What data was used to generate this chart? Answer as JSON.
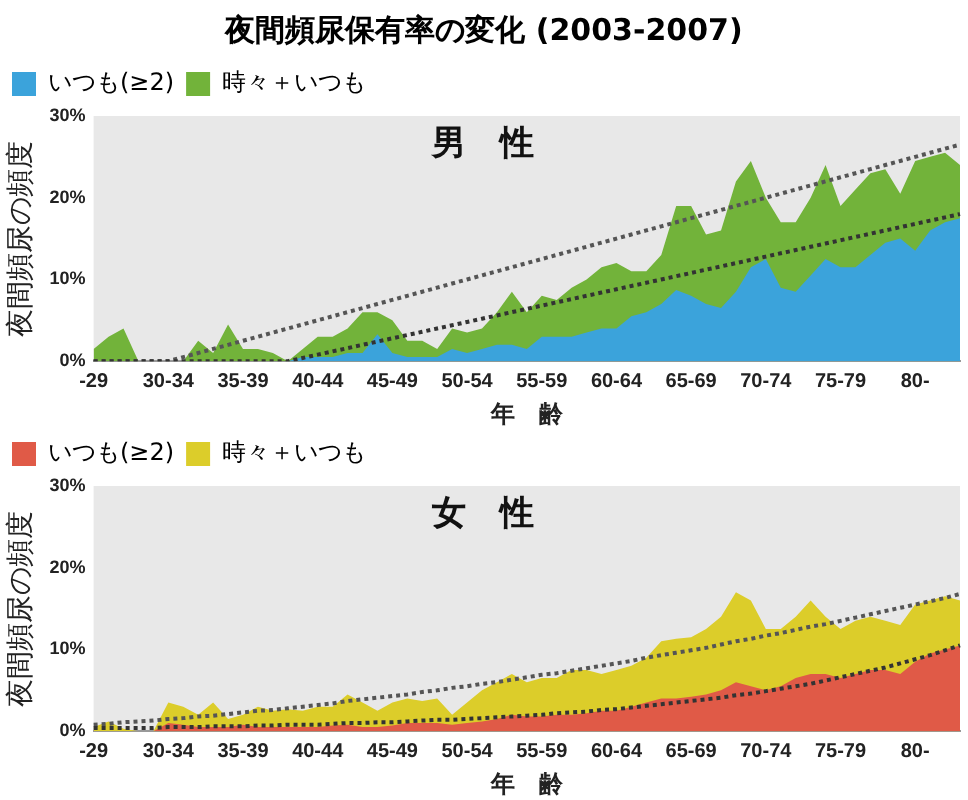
{
  "chart_data": [
    {
      "type": "area",
      "title": "夜間頻尿保有率の変化 (2003-2007)",
      "xlabel": "年　齢",
      "ylabel": "夜間頻尿の頻度",
      "annotations": [
        "男　性"
      ],
      "categories": [
        "-29",
        null,
        null,
        null,
        null,
        "30-34",
        null,
        null,
        null,
        null,
        "35-39",
        null,
        null,
        null,
        null,
        "40-44",
        null,
        null,
        null,
        null,
        "45-49",
        null,
        null,
        null,
        null,
        "50-54",
        null,
        null,
        null,
        null,
        "55-59",
        null,
        null,
        null,
        null,
        "60-64",
        null,
        null,
        null,
        null,
        "65-69",
        null,
        null,
        null,
        null,
        "70-74",
        null,
        null,
        null,
        null,
        "75-79",
        null,
        null,
        null,
        null,
        "80-",
        null,
        null,
        null
      ],
      "ylim": [
        0,
        30
      ],
      "yticks": [
        {
          "value": 0,
          "label": "0%"
        },
        {
          "value": 10,
          "label": "10%"
        },
        {
          "value": 20,
          "label": "20%"
        },
        {
          "value": 30,
          "label": "30%"
        }
      ],
      "grid": false,
      "legend": "top left",
      "marker": "none",
      "series": [
        {
          "type": "line",
          "color": "#333333",
          "line_style": "dotted",
          "values": [
            0,
            0,
            0,
            0,
            0,
            0,
            0,
            0,
            0,
            0,
            0,
            0,
            0,
            0,
            0.4,
            0.8,
            1.2,
            1.6,
            2,
            2.4,
            2.8,
            3.2,
            3.6,
            4,
            4.4,
            4.8,
            5.2,
            5.6,
            6,
            6.4,
            6.8,
            7.2,
            7.6,
            8,
            8.4,
            8.8,
            9.2,
            9.6,
            10,
            10.4,
            10.8,
            11.2,
            11.6,
            12,
            12.4,
            12.8,
            13.2,
            13.6,
            14,
            14.4,
            14.8,
            15.2,
            15.6,
            16,
            16.4,
            16.8,
            17.2,
            17.6,
            18
          ]
        },
        {
          "type": "line",
          "color": "#555555",
          "line_style": "dotted",
          "values": [
            0,
            0,
            0,
            0,
            0,
            0,
            0.5,
            1,
            1.5,
            2,
            2.5,
            3,
            3.5,
            4,
            4.5,
            5,
            5.5,
            6,
            6.5,
            7,
            7.5,
            8,
            8.5,
            9,
            9.5,
            10,
            10.5,
            11,
            11.5,
            12,
            12.5,
            13,
            13.5,
            14,
            14.5,
            15,
            15.5,
            16,
            16.5,
            17,
            17.5,
            18,
            18.5,
            19,
            19.5,
            20,
            20.5,
            21,
            21.5,
            22,
            22.5,
            23,
            23.5,
            24,
            24.5,
            25,
            25.5,
            26,
            26.5
          ]
        },
        {
          "name": "いつも(≥2)",
          "color": "#3ba3db",
          "values": [
            0,
            0,
            0,
            0,
            0,
            0,
            0,
            0,
            0,
            0,
            0,
            0,
            0,
            0,
            0.5,
            0.5,
            0.5,
            1,
            1,
            3.3,
            1,
            0.5,
            0.5,
            0.5,
            1.5,
            1,
            1.5,
            2,
            2,
            1.5,
            3,
            3,
            3,
            3.5,
            4,
            4,
            5.5,
            6,
            7,
            8.7,
            8,
            7,
            6.5,
            8.5,
            11.5,
            12.5,
            9,
            8.5,
            10.5,
            12.5,
            11.5,
            11.5,
            13,
            14.5,
            15,
            13.5,
            16,
            17,
            17.5
          ]
        },
        {
          "name": "時々＋いつも",
          "color": "#72b33a",
          "values": [
            1.5,
            3,
            4,
            0,
            0,
            0,
            0,
            2.5,
            1,
            4.5,
            1.5,
            1.5,
            1,
            0,
            1.5,
            3,
            3,
            4,
            6,
            6,
            5,
            2.5,
            2.5,
            1.5,
            4,
            3.5,
            4,
            6,
            8.5,
            6,
            8,
            7.5,
            9,
            10,
            11.5,
            12,
            11,
            11,
            13,
            19,
            19,
            15.5,
            16,
            22,
            24.5,
            20,
            17,
            17,
            20,
            24,
            19,
            21,
            23,
            23.5,
            20.5,
            24.5,
            25,
            25.5,
            24
          ]
        }
      ]
    },
    {
      "type": "area",
      "xlabel": "年　齢",
      "ylabel": "夜間頻尿の頻度",
      "annotations": [
        "女　性"
      ],
      "categories": [
        "-29",
        null,
        null,
        null,
        null,
        "30-34",
        null,
        null,
        null,
        null,
        "35-39",
        null,
        null,
        null,
        null,
        "40-44",
        null,
        null,
        null,
        null,
        "45-49",
        null,
        null,
        null,
        null,
        "50-54",
        null,
        null,
        null,
        null,
        "55-59",
        null,
        null,
        null,
        null,
        "60-64",
        null,
        null,
        null,
        null,
        "65-69",
        null,
        null,
        null,
        null,
        "70-74",
        null,
        null,
        null,
        null,
        "75-79",
        null,
        null,
        null,
        null,
        "80-",
        null,
        null,
        null
      ],
      "ylim": [
        0,
        30
      ],
      "yticks": [
        {
          "value": 0,
          "label": "0%"
        },
        {
          "value": 10,
          "label": "10%"
        },
        {
          "value": 20,
          "label": "20%"
        },
        {
          "value": 30,
          "label": "30%"
        }
      ],
      "grid": false,
      "legend": "top left",
      "marker": "none",
      "series": [
        {
          "type": "line",
          "color": "#333333",
          "line_style": "dotted",
          "values": [
            0.4,
            0.4,
            0.4,
            0.4,
            0.4,
            0.5,
            0.5,
            0.5,
            0.6,
            0.6,
            0.6,
            0.7,
            0.7,
            0.8,
            0.8,
            0.8,
            0.9,
            1,
            1,
            1.1,
            1.1,
            1.2,
            1.3,
            1.4,
            1.4,
            1.5,
            1.6,
            1.7,
            1.8,
            1.9,
            2,
            2.2,
            2.3,
            2.4,
            2.6,
            2.7,
            2.9,
            3.1,
            3.3,
            3.5,
            3.7,
            3.9,
            4.1,
            4.4,
            4.6,
            4.9,
            5.2,
            5.5,
            5.8,
            6.2,
            6.6,
            7,
            7.4,
            7.8,
            8.3,
            8.8,
            9.3,
            9.9,
            10.5
          ]
        },
        {
          "type": "line",
          "color": "#555555",
          "line_style": "dotted",
          "values": [
            0.8,
            0.9,
            1.1,
            1.2,
            1.3,
            1.5,
            1.6,
            1.8,
            1.9,
            2.1,
            2.3,
            2.5,
            2.6,
            2.8,
            3,
            3.2,
            3.4,
            3.7,
            3.9,
            4.1,
            4.3,
            4.5,
            4.8,
            5,
            5.3,
            5.5,
            5.8,
            6,
            6.3,
            6.6,
            6.9,
            7.1,
            7.4,
            7.7,
            8,
            8.3,
            8.6,
            9,
            9.3,
            9.6,
            9.9,
            10.2,
            10.6,
            11,
            11.3,
            11.7,
            12,
            12.4,
            12.8,
            13.1,
            13.5,
            13.9,
            14.3,
            14.7,
            15.1,
            15.5,
            15.9,
            16.3,
            16.8
          ]
        },
        {
          "name": "いつも(≥2)",
          "color": "#e05a47",
          "values": [
            0,
            0,
            0,
            0,
            0,
            1,
            0.8,
            0.5,
            0.5,
            0.5,
            0.8,
            0.5,
            0.5,
            0.5,
            0.5,
            0.5,
            0.7,
            0.8,
            0.5,
            0.5,
            0.7,
            1,
            1,
            1,
            0.8,
            1,
            1.2,
            1.5,
            2,
            1.8,
            1.8,
            2,
            2,
            2.2,
            2.5,
            2.5,
            3,
            3.5,
            4,
            4,
            4.2,
            4.5,
            5,
            6,
            5.5,
            5,
            5.5,
            6.5,
            7,
            7,
            6.5,
            7,
            7.5,
            7.5,
            7,
            8.5,
            9.5,
            10,
            10.5
          ]
        },
        {
          "name": "時々＋いつも",
          "color": "#dccd2a",
          "values": [
            0.5,
            1.2,
            0.3,
            0,
            0,
            3.5,
            3,
            2,
            3.5,
            1.5,
            2,
            3,
            2.5,
            2.7,
            2.5,
            3,
            3,
            4.5,
            3.5,
            2.5,
            3.5,
            4,
            3.7,
            4,
            2,
            3.5,
            5,
            6,
            7,
            6,
            6.5,
            6.5,
            7.5,
            7.5,
            7,
            7.5,
            8,
            9,
            11,
            11.3,
            11.5,
            12.5,
            14,
            17,
            16,
            12.5,
            12.5,
            14,
            16,
            14,
            12.5,
            13.5,
            14,
            13.5,
            13,
            15.5,
            16,
            16.5,
            16
          ]
        }
      ]
    }
  ]
}
